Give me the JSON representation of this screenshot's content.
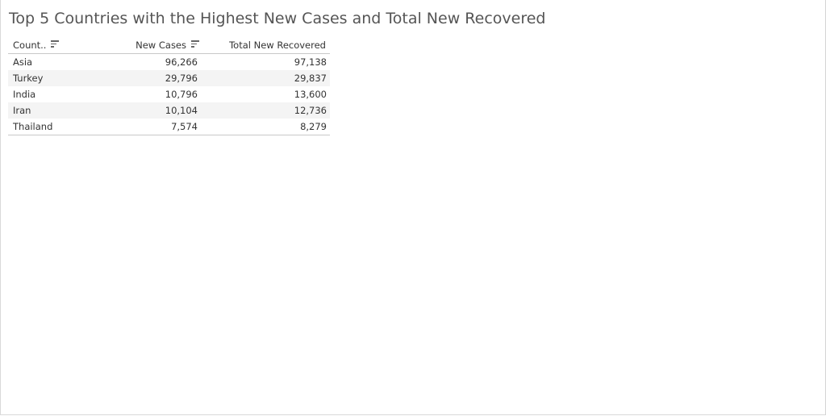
{
  "chart_data": {
    "type": "table",
    "title": "Top 5 Countries with the Highest New Cases and Total New Recovered",
    "columns": [
      "Count..",
      "New Cases",
      "Total New Recovered"
    ],
    "rows": [
      {
        "country": "Asia",
        "new_cases": "96,266",
        "total_new_recovered": "97,138"
      },
      {
        "country": "Turkey",
        "new_cases": "29,796",
        "total_new_recovered": "29,837"
      },
      {
        "country": "India",
        "new_cases": "10,796",
        "total_new_recovered": "13,600"
      },
      {
        "country": "Iran",
        "new_cases": "10,104",
        "total_new_recovered": "12,736"
      },
      {
        "country": "Thailand",
        "new_cases": "7,574",
        "total_new_recovered": "8,279"
      }
    ]
  },
  "icons": {
    "country_sort": "sort-icon",
    "new_cases_sort": "sort-icon"
  },
  "colors": {
    "title": "#555555",
    "text": "#333333",
    "alt_row": "#f4f4f4",
    "rule": "#c8c8c8"
  }
}
